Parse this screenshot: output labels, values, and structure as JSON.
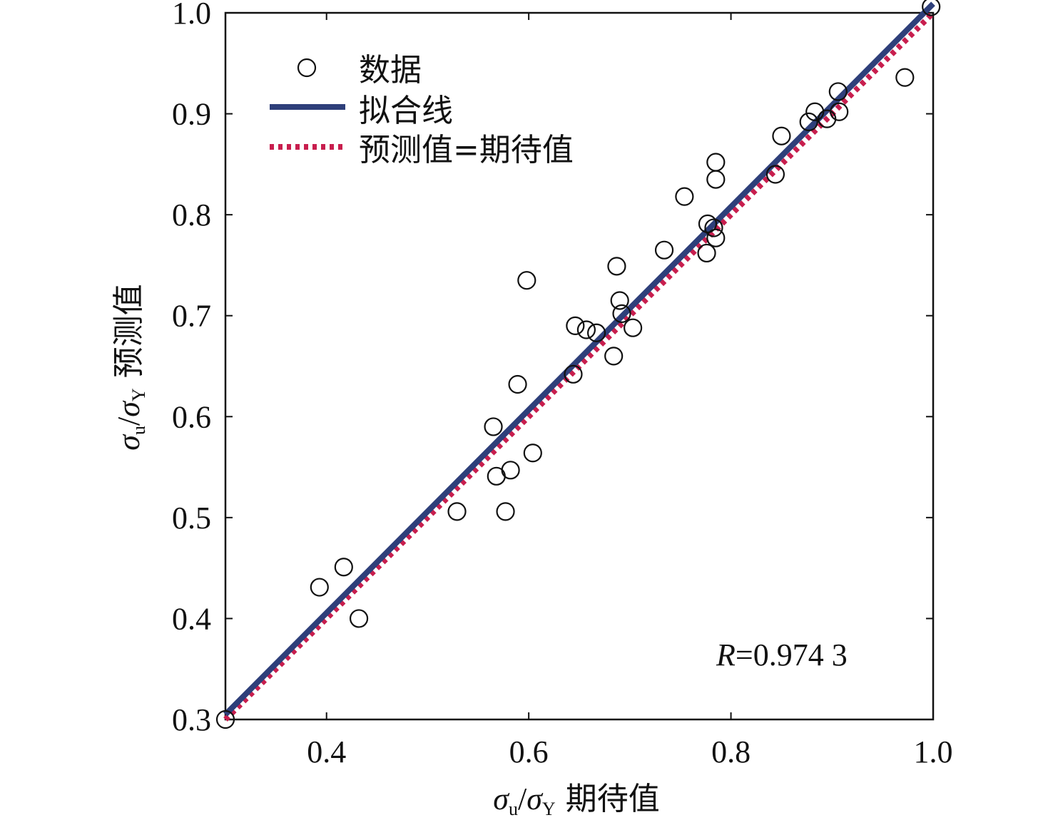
{
  "chart_data": {
    "type": "scatter",
    "xlim": [
      0.3,
      1.0
    ],
    "ylim": [
      0.3,
      1.0
    ],
    "x_ticks": [
      "0.4",
      "0.6",
      "0.8",
      "1.0"
    ],
    "y_ticks": [
      "0.3",
      "0.4",
      "0.5",
      "0.6",
      "0.7",
      "0.8",
      "0.9",
      "1.0"
    ],
    "x_tick_values": [
      0.4,
      0.6,
      0.8,
      1.0
    ],
    "y_tick_values": [
      0.3,
      0.4,
      0.5,
      0.6,
      0.7,
      0.8,
      0.9,
      1.0
    ],
    "xlabel": {
      "symbol": "σ",
      "sub1": "u",
      "slash": "/",
      "sub2": "Y",
      "text": " 期待值"
    },
    "ylabel": {
      "symbol": "σ",
      "sub1": "u",
      "slash": "/",
      "sub2": "Y",
      "text": " 预测值"
    },
    "legend": {
      "position": "top-left",
      "entries": [
        "数据",
        "拟合线",
        "预测值=期待值"
      ]
    },
    "annotation": {
      "r_symbol": "R",
      "r_text": "=0.974 3"
    },
    "grid": false,
    "series": [
      {
        "name": "数据",
        "marker": "open-circle",
        "points": [
          [
            0.3,
            0.3
          ],
          [
            0.393,
            0.431
          ],
          [
            0.417,
            0.451
          ],
          [
            0.432,
            0.4
          ],
          [
            0.529,
            0.506
          ],
          [
            0.565,
            0.59
          ],
          [
            0.568,
            0.541
          ],
          [
            0.577,
            0.506
          ],
          [
            0.582,
            0.547
          ],
          [
            0.589,
            0.632
          ],
          [
            0.598,
            0.735
          ],
          [
            0.604,
            0.564
          ],
          [
            0.644,
            0.642
          ],
          [
            0.646,
            0.69
          ],
          [
            0.657,
            0.686
          ],
          [
            0.667,
            0.683
          ],
          [
            0.684,
            0.66
          ],
          [
            0.687,
            0.749
          ],
          [
            0.69,
            0.715
          ],
          [
            0.692,
            0.702
          ],
          [
            0.703,
            0.688
          ],
          [
            0.734,
            0.765
          ],
          [
            0.754,
            0.818
          ],
          [
            0.776,
            0.762
          ],
          [
            0.777,
            0.791
          ],
          [
            0.783,
            0.787
          ],
          [
            0.785,
            0.777
          ],
          [
            0.785,
            0.852
          ],
          [
            0.785,
            0.835
          ],
          [
            0.844,
            0.84
          ],
          [
            0.85,
            0.878
          ],
          [
            0.877,
            0.892
          ],
          [
            0.883,
            0.902
          ],
          [
            0.895,
            0.895
          ],
          [
            0.906,
            0.922
          ],
          [
            0.907,
            0.902
          ],
          [
            0.972,
            0.936
          ],
          [
            0.998,
            1.006
          ]
        ]
      },
      {
        "name": "拟合线",
        "style": "solid",
        "color": "#2e3f7a",
        "points": [
          [
            0.3,
            0.305
          ],
          [
            1.0,
            1.009
          ]
        ]
      },
      {
        "name": "预测值=期待值",
        "style": "dotted",
        "color": "#c81e4e",
        "points": [
          [
            0.3,
            0.3
          ],
          [
            1.0,
            1.0
          ]
        ]
      }
    ]
  }
}
